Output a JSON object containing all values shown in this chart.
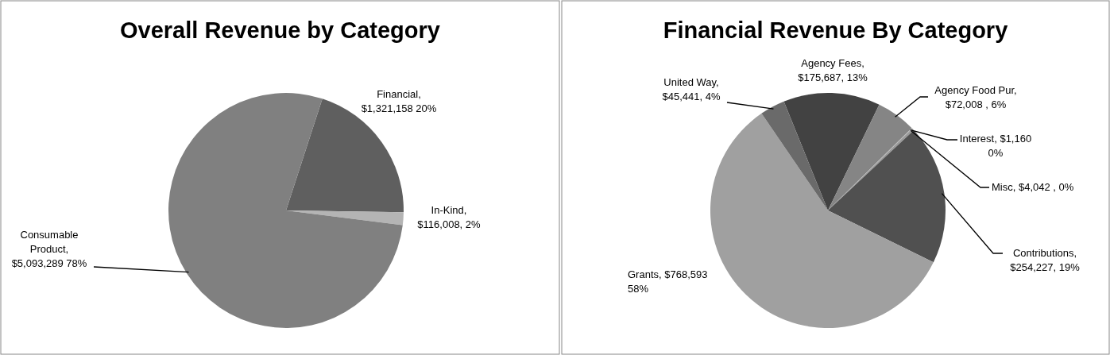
{
  "chart_data": [
    {
      "type": "pie",
      "title": "Overall Revenue by Category",
      "categories": [
        "Financial",
        "In-Kind",
        "Consumable Product"
      ],
      "values": [
        1321158,
        116008,
        5093289
      ],
      "colors": [
        "#5f5f5f",
        "#b4b4b4",
        "#808080"
      ],
      "value_labels": [
        ", $1,321,158 20%",
        ", $116,008, 2%",
        ", $5,093,289 78%"
      ]
    },
    {
      "type": "pie",
      "title": "Financial Revenue By Category",
      "categories": [
        "Agency Fees",
        "Agency Food Pur",
        "Interest",
        "Misc",
        "Contributions",
        "Grants",
        "United Way"
      ],
      "values": [
        175687,
        72008,
        1160,
        4042,
        254227,
        768593,
        45441
      ],
      "colors": [
        "#424242",
        "#858585",
        "#b4b4b4",
        "#9a9a9a",
        "#505050",
        "#a0a0a0",
        "#6a6a6a"
      ],
      "value_labels": [
        ", $175,687, 13%",
        ", $72,008 , 6%",
        ", $1,160 0%",
        ", $4,042 , 0%",
        ", $254,227, 19%",
        ", $768,593 58%",
        ", $45,441, 4%"
      ]
    }
  ]
}
